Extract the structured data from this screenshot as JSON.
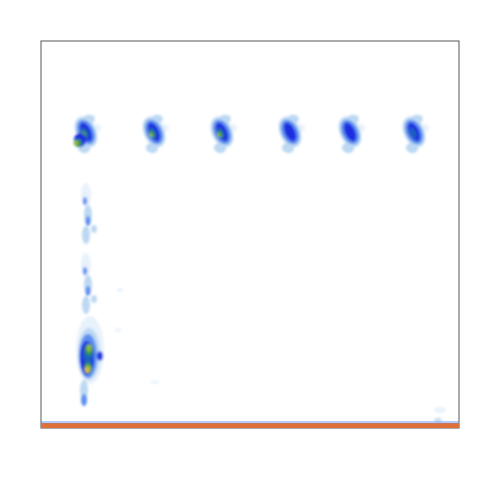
{
  "chart_data": {
    "type": "heatmap",
    "title": "",
    "xlabel": "",
    "ylabel": "",
    "grid": false,
    "legend": "none",
    "colorscale": [
      "#ffffff",
      "#e8f2fb",
      "#bcd8f2",
      "#5b8ff0",
      "#1f2fe0",
      "#1a5fbf",
      "#2f8f5a",
      "#8db83a",
      "#e8b84b",
      "#e8823a"
    ],
    "baseline_band": {
      "present": true,
      "color": "#e0703a"
    },
    "upper_row_clusters": [
      {
        "column": 1,
        "peak_level": 6
      },
      {
        "column": 2,
        "peak_level": 6
      },
      {
        "column": 3,
        "peak_level": 6
      },
      {
        "column": 4,
        "peak_level": 4
      },
      {
        "column": 5,
        "peak_level": 4
      },
      {
        "column": 6,
        "peak_level": 5
      }
    ],
    "left_column": {
      "column": 1,
      "segments": [
        {
          "position": "upper",
          "peak_level": 3
        },
        {
          "position": "middle",
          "peak_level": 3
        },
        {
          "position": "lower",
          "peak_level": 8
        }
      ]
    }
  }
}
